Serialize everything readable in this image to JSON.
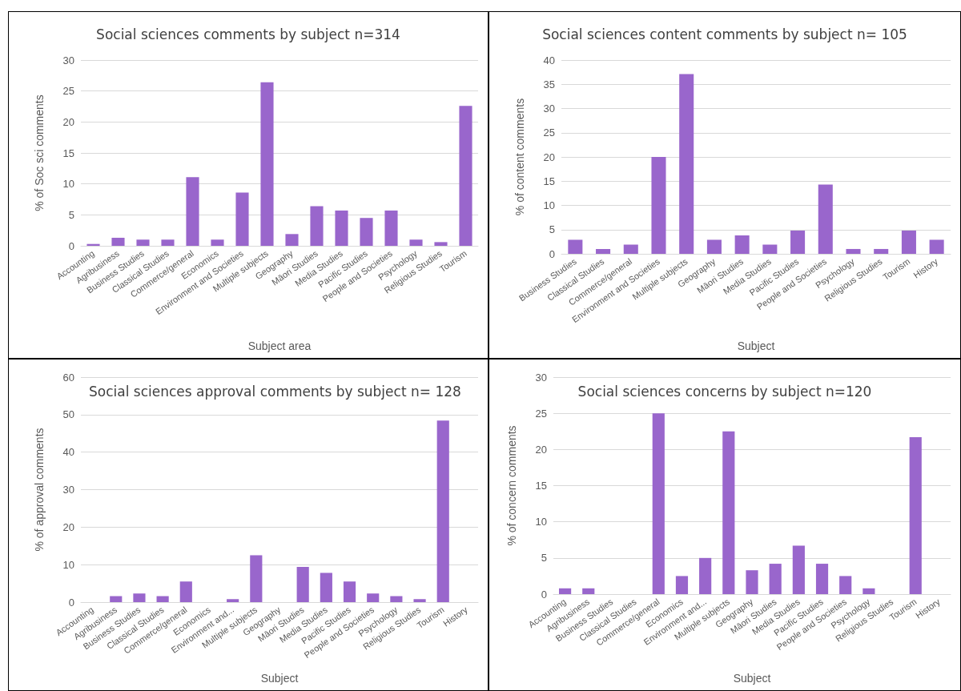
{
  "chart_data": [
    {
      "type": "bar",
      "title": "Social sciences comments by subject n=314",
      "xlabel": "Subject area",
      "ylabel": "% of Soc sci comments",
      "categories": [
        "Accounting",
        "Agribusiness",
        "Business Studies",
        "Classical Studies",
        "Commerce/general",
        "Economics",
        "Environment and Societies",
        "Multiple subjects",
        "Geography",
        "Māori Studies",
        "Media Studies",
        "Pacific Studies",
        "People and Societies",
        "Psychology",
        "Religious Studies",
        "Tourism"
      ],
      "values": [
        0.3,
        1.3,
        1.0,
        1.0,
        11.1,
        1.0,
        8.6,
        26.4,
        1.9,
        6.4,
        5.7,
        4.5,
        5.7,
        1.0,
        0.6,
        22.6
      ],
      "color": "#9966cc",
      "ylim": [
        0,
        30
      ],
      "yticks": [
        0,
        5,
        10,
        15,
        20,
        25,
        30
      ],
      "grid": "y"
    },
    {
      "type": "bar",
      "title": "Social sciences content comments by subject n= 105",
      "xlabel": "Subject",
      "ylabel": "% of content comments",
      "categories": [
        "Business Studies",
        "Classical Studies",
        "Commerce/general",
        "Environment and Societies",
        "Multiple subjects",
        "Geography",
        "Māori Studies",
        "Media Studies",
        "Pacific Studies",
        "People and Societies",
        "Psychology",
        "Religious Studies",
        "Tourism",
        "History"
      ],
      "values": [
        2.9,
        1.0,
        1.9,
        20,
        37.1,
        2.9,
        3.8,
        1.9,
        4.8,
        14.3,
        1.0,
        1.0,
        4.8,
        2.9
      ],
      "color": "#9966cc",
      "ylim": [
        0,
        40
      ],
      "yticks": [
        0,
        5,
        10,
        15,
        20,
        25,
        30,
        35,
        40
      ],
      "grid": "y"
    },
    {
      "type": "bar",
      "title": "Social sciences approval comments by subject n= 128",
      "xlabel": "Subject",
      "ylabel": "% of approval comments",
      "categories": [
        "Accounting",
        "Agribusiness",
        "Business Studies",
        "Classical Studies",
        "Commerce/general",
        "Economics",
        "Environment and...",
        "Multiple subjects",
        "Geography",
        "Māori Studies",
        "Media Studies",
        "Pacific Studies",
        "People and Societies",
        "Psychology",
        "Religious Studies",
        "Tourism",
        "History"
      ],
      "values": [
        0,
        1.6,
        2.3,
        1.6,
        5.5,
        0,
        0.8,
        12.5,
        0,
        9.4,
        7.8,
        5.5,
        2.3,
        1.6,
        0.8,
        48.4,
        null
      ],
      "color": "#9966cc",
      "ylim": [
        0,
        60
      ],
      "yticks": [
        0,
        10,
        20,
        30,
        40,
        50,
        60
      ],
      "grid": "y"
    },
    {
      "type": "bar",
      "title": "Social sciences concerns by subject n=120",
      "xlabel": "Subject",
      "ylabel": "% of concern comments",
      "categories": [
        "Accounting",
        "Agribusiness",
        "Business Studies",
        "Classical Studies",
        "Commerce/general",
        "Economics",
        "Environment and...",
        "Multiple subjects",
        "Geography",
        "Māori Studies",
        "Media Studies",
        "Pacific Studies",
        "People and Societies",
        "Psychology",
        "Religious Studies",
        "Tourism",
        "History"
      ],
      "values": [
        0.8,
        0.8,
        0,
        0,
        25,
        2.5,
        5,
        22.5,
        3.3,
        4.2,
        6.7,
        4.2,
        2.5,
        0.8,
        0,
        21.7,
        null
      ],
      "color": "#9966cc",
      "ylim": [
        0,
        30
      ],
      "yticks": [
        0,
        5,
        10,
        15,
        20,
        25,
        30
      ],
      "grid": "y"
    }
  ]
}
